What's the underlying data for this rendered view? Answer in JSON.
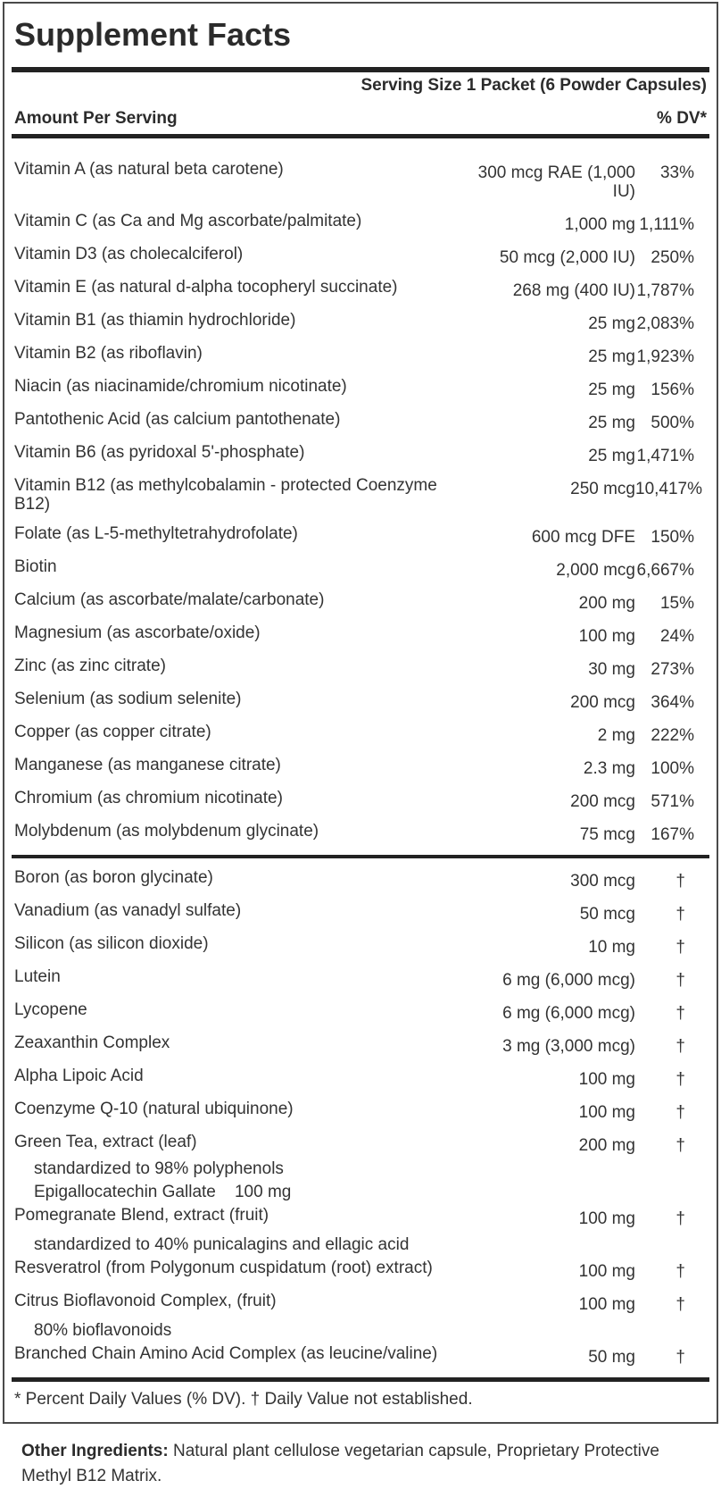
{
  "label": {
    "title": "Supplement Facts",
    "serving_size": "Serving Size 1 Packet (6 Powder Capsules)",
    "amount_header": "Amount Per Serving",
    "dv_header": "% DV*",
    "rows": [
      {
        "name": "Vitamin A (as natural beta carotene)",
        "amount": "300 mcg RAE (1,000 IU)",
        "dv": "33%"
      },
      {
        "name": "Vitamin C (as Ca and Mg ascorbate/palmitate)",
        "amount": "1,000 mg",
        "dv": "1,111%"
      },
      {
        "name": "Vitamin D3 (as cholecalciferol)",
        "amount": "50 mcg (2,000 IU)",
        "dv": "250%"
      },
      {
        "name": "Vitamin E (as natural d-alpha tocopheryl succinate)",
        "amount": "268 mg (400 IU)",
        "dv": "1,787%"
      },
      {
        "name": "Vitamin B1 (as thiamin hydrochloride)",
        "amount": "25 mg",
        "dv": "2,083%"
      },
      {
        "name": "Vitamin B2 (as riboflavin)",
        "amount": "25 mg",
        "dv": "1,923%"
      },
      {
        "name": "Niacin (as niacinamide/chromium nicotinate)",
        "amount": "25 mg",
        "dv": "156%"
      },
      {
        "name": "Pantothenic Acid (as calcium pantothenate)",
        "amount": "25 mg",
        "dv": "500%"
      },
      {
        "name": "Vitamin B6 (as pyridoxal 5'-phosphate)",
        "amount": "25 mg",
        "dv": "1,471%"
      },
      {
        "name": "Vitamin B12 (as methylcobalamin - protected Coenzyme B12)",
        "amount": "250 mcg",
        "dv": "10,417%"
      },
      {
        "name": "Folate (as L-5-methyltetrahydrofolate)",
        "amount": "600 mcg DFE",
        "dv": "150%"
      },
      {
        "name": "Biotin",
        "amount": "2,000 mcg",
        "dv": "6,667%"
      },
      {
        "name": "Calcium (as ascorbate/malate/carbonate)",
        "amount": "200 mg",
        "dv": "15%"
      },
      {
        "name": "Magnesium (as ascorbate/oxide)",
        "amount": "100 mg",
        "dv": "24%"
      },
      {
        "name": "Zinc (as zinc citrate)",
        "amount": "30 mg",
        "dv": "273%"
      },
      {
        "name": "Selenium (as sodium selenite)",
        "amount": "200 mcg",
        "dv": "364%"
      },
      {
        "name": "Copper (as copper citrate)",
        "amount": "2 mg",
        "dv": "222%"
      },
      {
        "name": "Manganese (as manganese citrate)",
        "amount": "2.3 mg",
        "dv": "100%"
      },
      {
        "name": "Chromium (as chromium nicotinate)",
        "amount": "200 mcg",
        "dv": "571%"
      },
      {
        "name": "Molybdenum (as molybdenum glycinate)",
        "amount": "75 mcg",
        "dv": "167%"
      },
      {
        "name": "Boron (as boron glycinate)",
        "amount": "300 mcg",
        "dv": "†",
        "divider_before": true
      },
      {
        "name": "Vanadium (as vanadyl sulfate)",
        "amount": "50 mcg",
        "dv": "†"
      },
      {
        "name": "Silicon (as silicon dioxide)",
        "amount": "10 mg",
        "dv": "†"
      },
      {
        "name": "Lutein",
        "amount": "6 mg (6,000 mcg)",
        "dv": "†"
      },
      {
        "name": "Lycopene",
        "amount": "6 mg (6,000 mcg)",
        "dv": "†"
      },
      {
        "name": "Zeaxanthin Complex",
        "amount": "3 mg (3,000 mcg)",
        "dv": "†"
      },
      {
        "name": "Alpha Lipoic Acid",
        "amount": "100 mg",
        "dv": "†"
      },
      {
        "name": "Coenzyme Q-10 (natural ubiquinone)",
        "amount": "100 mg",
        "dv": "†"
      },
      {
        "name": "Green Tea, extract (leaf)",
        "amount": "200 mg",
        "dv": "†",
        "subs": [
          "standardized to 98% polyphenols",
          "Epigallocatechin Gallate    100 mg"
        ]
      },
      {
        "name": "Pomegranate Blend, extract (fruit)",
        "amount": "100 mg",
        "dv": "†",
        "subs": [
          "standardized to 40% punicalagins and ellagic acid"
        ],
        "sub_gap": true
      },
      {
        "name": "Resveratrol (from Polygonum cuspidatum (root) extract)",
        "amount": "100 mg",
        "dv": "†"
      },
      {
        "name": "Citrus Bioflavonoid Complex, (fruit)",
        "amount": "100 mg",
        "dv": "†",
        "subs": [
          "80% bioflavonoids"
        ],
        "sub_gap": true
      },
      {
        "name": "Branched Chain Amino Acid Complex (as leucine/valine)",
        "amount": "50 mg",
        "dv": "†"
      }
    ],
    "footnote": "* Percent Daily Values (% DV). † Daily Value not established."
  },
  "other_ingredients": {
    "label": "Other Ingredients:",
    "text": " Natural plant cellulose vegetarian capsule, Proprietary Protective Methyl B12 Matrix."
  }
}
